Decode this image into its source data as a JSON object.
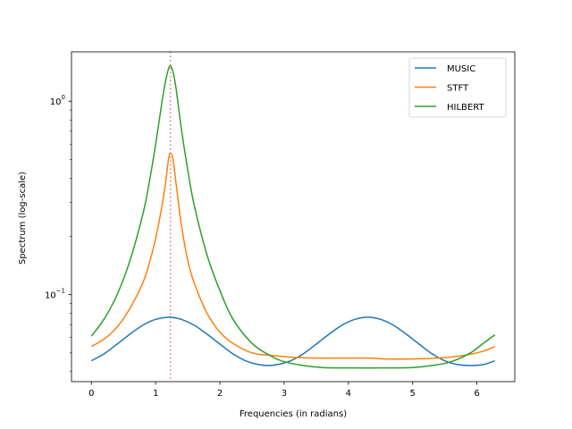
{
  "chart_data": {
    "type": "line",
    "title": "",
    "xlabel": "Frequencies (in radians)",
    "ylabel": "Spectrum (log-scale)",
    "xlim": [
      -0.31,
      6.59
    ],
    "ylim": [
      0.0355,
      1.8
    ],
    "yscale": "log",
    "xticks": [
      0,
      1,
      2,
      3,
      4,
      5,
      6
    ],
    "yticks": [
      {
        "value": 0.1,
        "base": "10",
        "exp": "−1"
      },
      {
        "value": 1,
        "base": "10",
        "exp": "0"
      }
    ],
    "grid": false,
    "legend_position": "top-right",
    "vertical_marker": {
      "x": 1.23,
      "color": "#ee7777",
      "style": "dotted"
    },
    "series": [
      {
        "name": "MUSIC",
        "color": "#1f77b4",
        "x": [
          0,
          0.2,
          0.4,
          0.6,
          0.8,
          1.0,
          1.2,
          1.23,
          1.4,
          1.6,
          1.8,
          2.0,
          2.2,
          2.4,
          2.6,
          2.75,
          2.9,
          3.1,
          3.3,
          3.5,
          3.7,
          3.9,
          4.1,
          4.3,
          4.5,
          4.7,
          4.9,
          5.1,
          5.3,
          5.5,
          5.7,
          5.9,
          6.1,
          6.28
        ],
        "y": [
          0.0455,
          0.0495,
          0.0555,
          0.0625,
          0.0695,
          0.0745,
          0.0765,
          0.0765,
          0.0745,
          0.0695,
          0.0625,
          0.0555,
          0.0495,
          0.0455,
          0.0435,
          0.043,
          0.0435,
          0.0455,
          0.0495,
          0.0555,
          0.0625,
          0.0695,
          0.0745,
          0.0765,
          0.0745,
          0.0695,
          0.0625,
          0.0555,
          0.0495,
          0.0455,
          0.0435,
          0.043,
          0.0435,
          0.0455
        ]
      },
      {
        "name": "STFT",
        "color": "#ff7f0e",
        "x": [
          0,
          0.2,
          0.4,
          0.6,
          0.8,
          0.9,
          1.0,
          1.1,
          1.15,
          1.2,
          1.23,
          1.27,
          1.32,
          1.4,
          1.5,
          1.6,
          1.8,
          2.0,
          2.2,
          2.5,
          2.8,
          3.1,
          3.5,
          4.0,
          4.3,
          4.6,
          5.0,
          5.4,
          5.8,
          6.1,
          6.28
        ],
        "y": [
          0.054,
          0.059,
          0.068,
          0.085,
          0.115,
          0.145,
          0.195,
          0.29,
          0.37,
          0.5,
          0.54,
          0.5,
          0.37,
          0.23,
          0.15,
          0.115,
          0.08,
          0.064,
          0.056,
          0.05,
          0.0485,
          0.0475,
          0.047,
          0.047,
          0.047,
          0.0465,
          0.0465,
          0.047,
          0.0485,
          0.051,
          0.054
        ]
      },
      {
        "name": "HILBERT",
        "color": "#2ca02c",
        "x": [
          0,
          0.2,
          0.4,
          0.6,
          0.8,
          0.9,
          1.0,
          1.1,
          1.15,
          1.2,
          1.23,
          1.27,
          1.32,
          1.4,
          1.5,
          1.6,
          1.8,
          2.0,
          2.2,
          2.5,
          2.8,
          3.0,
          3.3,
          3.6,
          4.0,
          4.5,
          5.0,
          5.3,
          5.6,
          5.9,
          6.1,
          6.28
        ],
        "y": [
          0.061,
          0.075,
          0.1,
          0.15,
          0.26,
          0.38,
          0.6,
          1.0,
          1.25,
          1.47,
          1.52,
          1.42,
          1.15,
          0.72,
          0.44,
          0.29,
          0.16,
          0.105,
          0.075,
          0.056,
          0.048,
          0.045,
          0.043,
          0.042,
          0.0418,
          0.0418,
          0.042,
          0.043,
          0.045,
          0.05,
          0.056,
          0.062
        ]
      }
    ]
  }
}
